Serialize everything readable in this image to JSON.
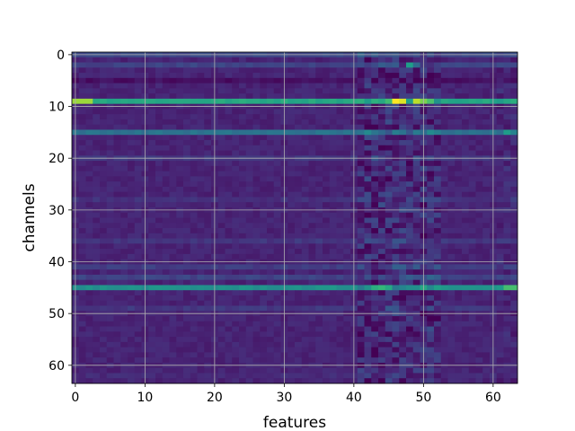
{
  "chart_data": {
    "type": "heatmap",
    "title": "",
    "xlabel": "features",
    "ylabel": "channels",
    "xlim": [
      -0.5,
      63.5
    ],
    "ylim": [
      63.5,
      -0.5
    ],
    "xticks": [
      0,
      10,
      20,
      30,
      40,
      50,
      60
    ],
    "yticks": [
      0,
      10,
      20,
      30,
      40,
      50,
      60
    ],
    "grid": true,
    "colormap": "viridis",
    "value_range": [
      0,
      1
    ],
    "n_rows": 64,
    "n_cols": 64,
    "row_levels": {
      "0": 0.22,
      "2": 0.2,
      "5": 0.04,
      "9": 0.6,
      "15": 0.38,
      "20": 0.16,
      "28": 0.14,
      "36": 0.16,
      "41": 0.18,
      "43": 0.2,
      "45": 0.5,
      "49": 0.16,
      "62": 0.12
    },
    "base_level": 0.1,
    "column_noise_band": [
      41,
      52
    ],
    "bright_cells": [
      {
        "row": 9,
        "col": 0,
        "value": 0.85
      },
      {
        "row": 9,
        "col": 1,
        "value": 0.85
      },
      {
        "row": 9,
        "col": 2,
        "value": 0.85
      },
      {
        "row": 9,
        "col": 46,
        "value": 1.0
      },
      {
        "row": 9,
        "col": 47,
        "value": 0.95
      },
      {
        "row": 9,
        "col": 49,
        "value": 0.9
      },
      {
        "row": 9,
        "col": 50,
        "value": 0.8
      },
      {
        "row": 45,
        "col": 43,
        "value": 0.62
      },
      {
        "row": 45,
        "col": 44,
        "value": 0.66
      },
      {
        "row": 45,
        "col": 62,
        "value": 0.7
      },
      {
        "row": 45,
        "col": 63,
        "value": 0.7
      },
      {
        "row": 2,
        "col": 48,
        "value": 0.55
      },
      {
        "row": 15,
        "col": 62,
        "value": 0.55
      }
    ]
  }
}
